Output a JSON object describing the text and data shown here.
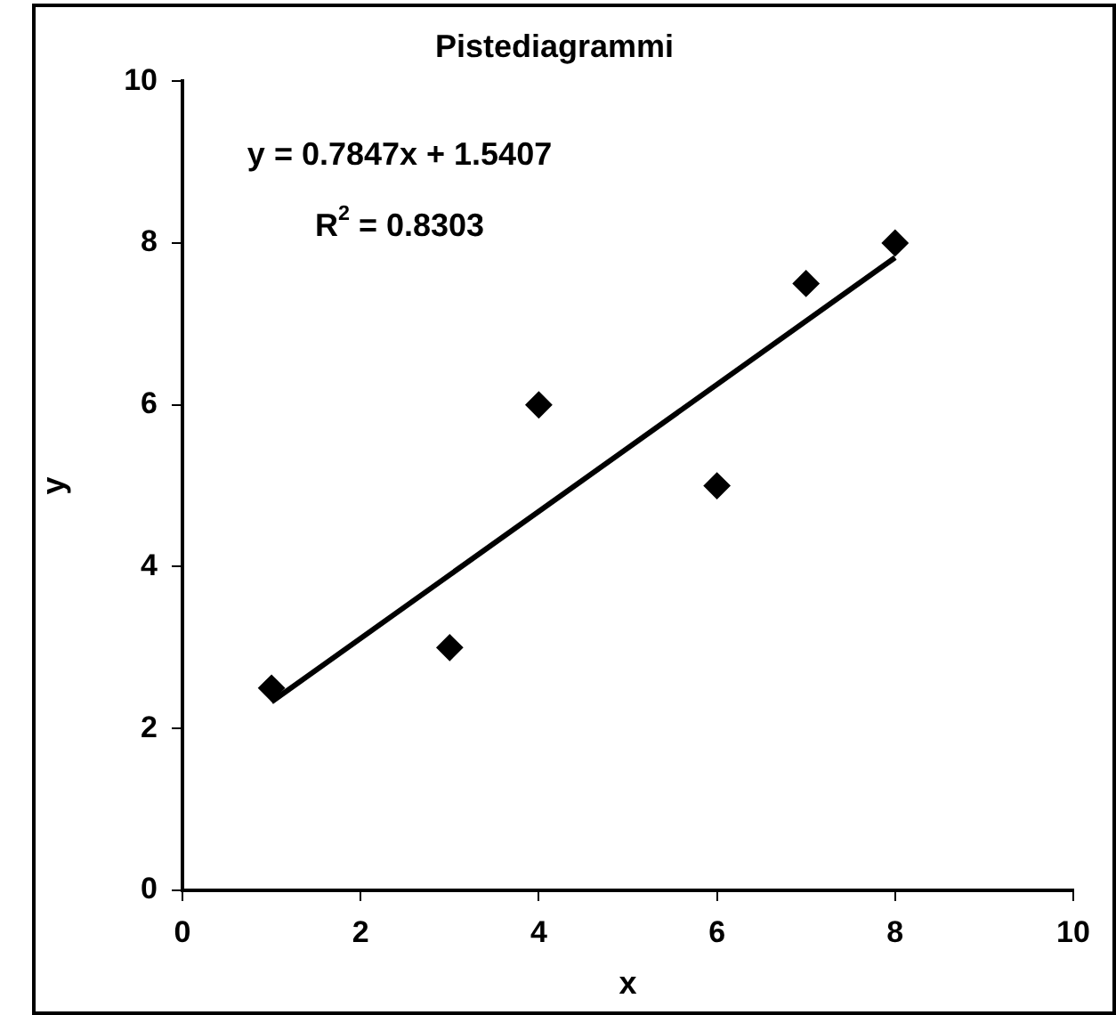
{
  "chart_data": {
    "type": "scatter",
    "title": "Pistediagrammi",
    "xlabel": "x",
    "ylabel": "y",
    "xlim": [
      0,
      10
    ],
    "xticks": [
      0,
      2,
      4,
      6,
      8,
      10
    ],
    "ylim": [
      0,
      10
    ],
    "yticks": [
      0,
      2,
      4,
      6,
      8,
      10
    ],
    "grid": false,
    "legend": false,
    "marker": "diamond",
    "annotations": [
      "y = 0.7847x + 1.5407",
      "R$^{2}$ = 0.8303"
    ],
    "series": [
      {
        "type": "scatter",
        "color": "#000000",
        "x": [
          1,
          3,
          4,
          6,
          7,
          8
        ],
        "values": [
          2.5,
          3,
          6,
          5,
          7.5,
          8
        ]
      },
      {
        "type": "line",
        "color": "#000000",
        "marker": "none",
        "x": [
          1,
          8
        ],
        "values": [
          2.33,
          7.82
        ]
      }
    ]
  }
}
